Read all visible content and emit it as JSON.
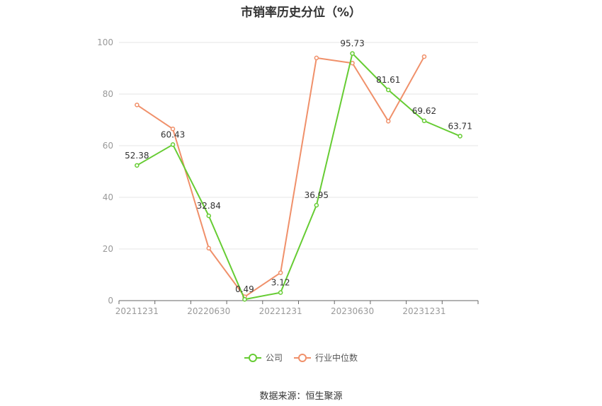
{
  "chart_data": {
    "type": "line",
    "title": "市销率历史分位（%）",
    "xlabel": "",
    "ylabel": "",
    "x": [
      "20211231",
      "20220331",
      "20220630",
      "20220930",
      "20221231",
      "20230331",
      "20230630",
      "20230930",
      "20231231",
      "20240331"
    ],
    "x_tick_labels": [
      "20211231",
      "20220630",
      "20221231",
      "20230630",
      "20231231"
    ],
    "ylim": [
      0,
      100
    ],
    "y_ticks": [
      0,
      20,
      40,
      60,
      80,
      100
    ],
    "grid": true,
    "legend_position": "bottom",
    "series": [
      {
        "name": "公司",
        "color": "#66cc33",
        "values": [
          52.38,
          60.43,
          32.84,
          0.49,
          3.12,
          36.95,
          95.73,
          81.61,
          69.62,
          63.71
        ],
        "labels": [
          "52.38",
          "60.43",
          "32.84",
          "0.49",
          "3.12",
          "36.95",
          "95.73",
          "81.61",
          "69.62",
          "63.71"
        ]
      },
      {
        "name": "行业中位数",
        "color": "#f0906a",
        "values": [
          75.8,
          66.5,
          20.3,
          1.5,
          10.8,
          94.0,
          92.0,
          69.5,
          94.5,
          null
        ]
      }
    ]
  },
  "source_text": "数据来源：恒生聚源"
}
